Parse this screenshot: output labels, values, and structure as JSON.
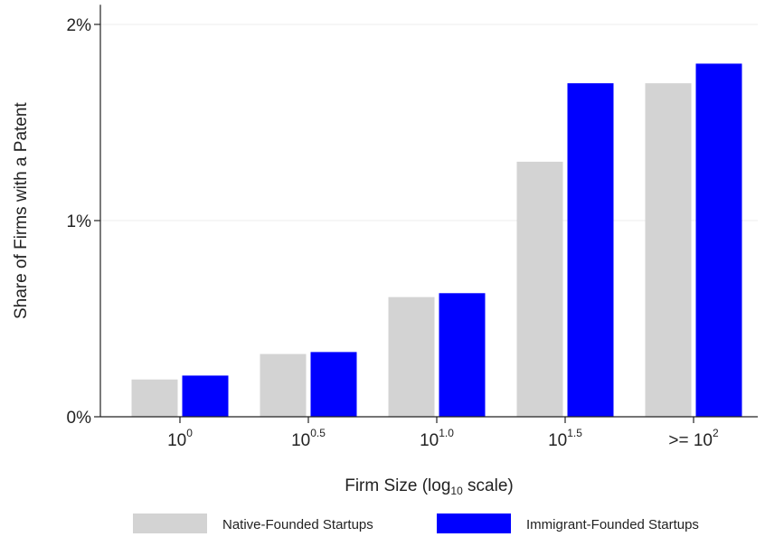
{
  "chart_data": {
    "type": "bar",
    "title": "",
    "xlabel": {
      "prefix": "Firm Size (log",
      "sub": "10",
      "suffix": " scale)"
    },
    "ylabel": "Share of Firms with a Patent",
    "ylim": [
      0,
      2.1
    ],
    "yticks": [
      {
        "value": 0,
        "label": "0%"
      },
      {
        "value": 1,
        "label": "1%"
      },
      {
        "value": 2,
        "label": "2%"
      }
    ],
    "categories": [
      {
        "base": "10",
        "sup": "0"
      },
      {
        "base": "10",
        "sup": "0.5"
      },
      {
        "base": "10",
        "sup": "1.0"
      },
      {
        "base": "10",
        "sup": "1.5"
      },
      {
        "base": ">= 10",
        "sup": "2"
      }
    ],
    "grid": true,
    "legend_position": "bottom",
    "series": [
      {
        "name": "Native-Founded Startups",
        "color": "#d3d3d3",
        "values": [
          0.19,
          0.32,
          0.61,
          1.3,
          1.7
        ]
      },
      {
        "name": "Immigrant-Founded Startups",
        "color": "#0000ff",
        "values": [
          0.21,
          0.33,
          0.63,
          1.7,
          1.8
        ]
      }
    ]
  }
}
